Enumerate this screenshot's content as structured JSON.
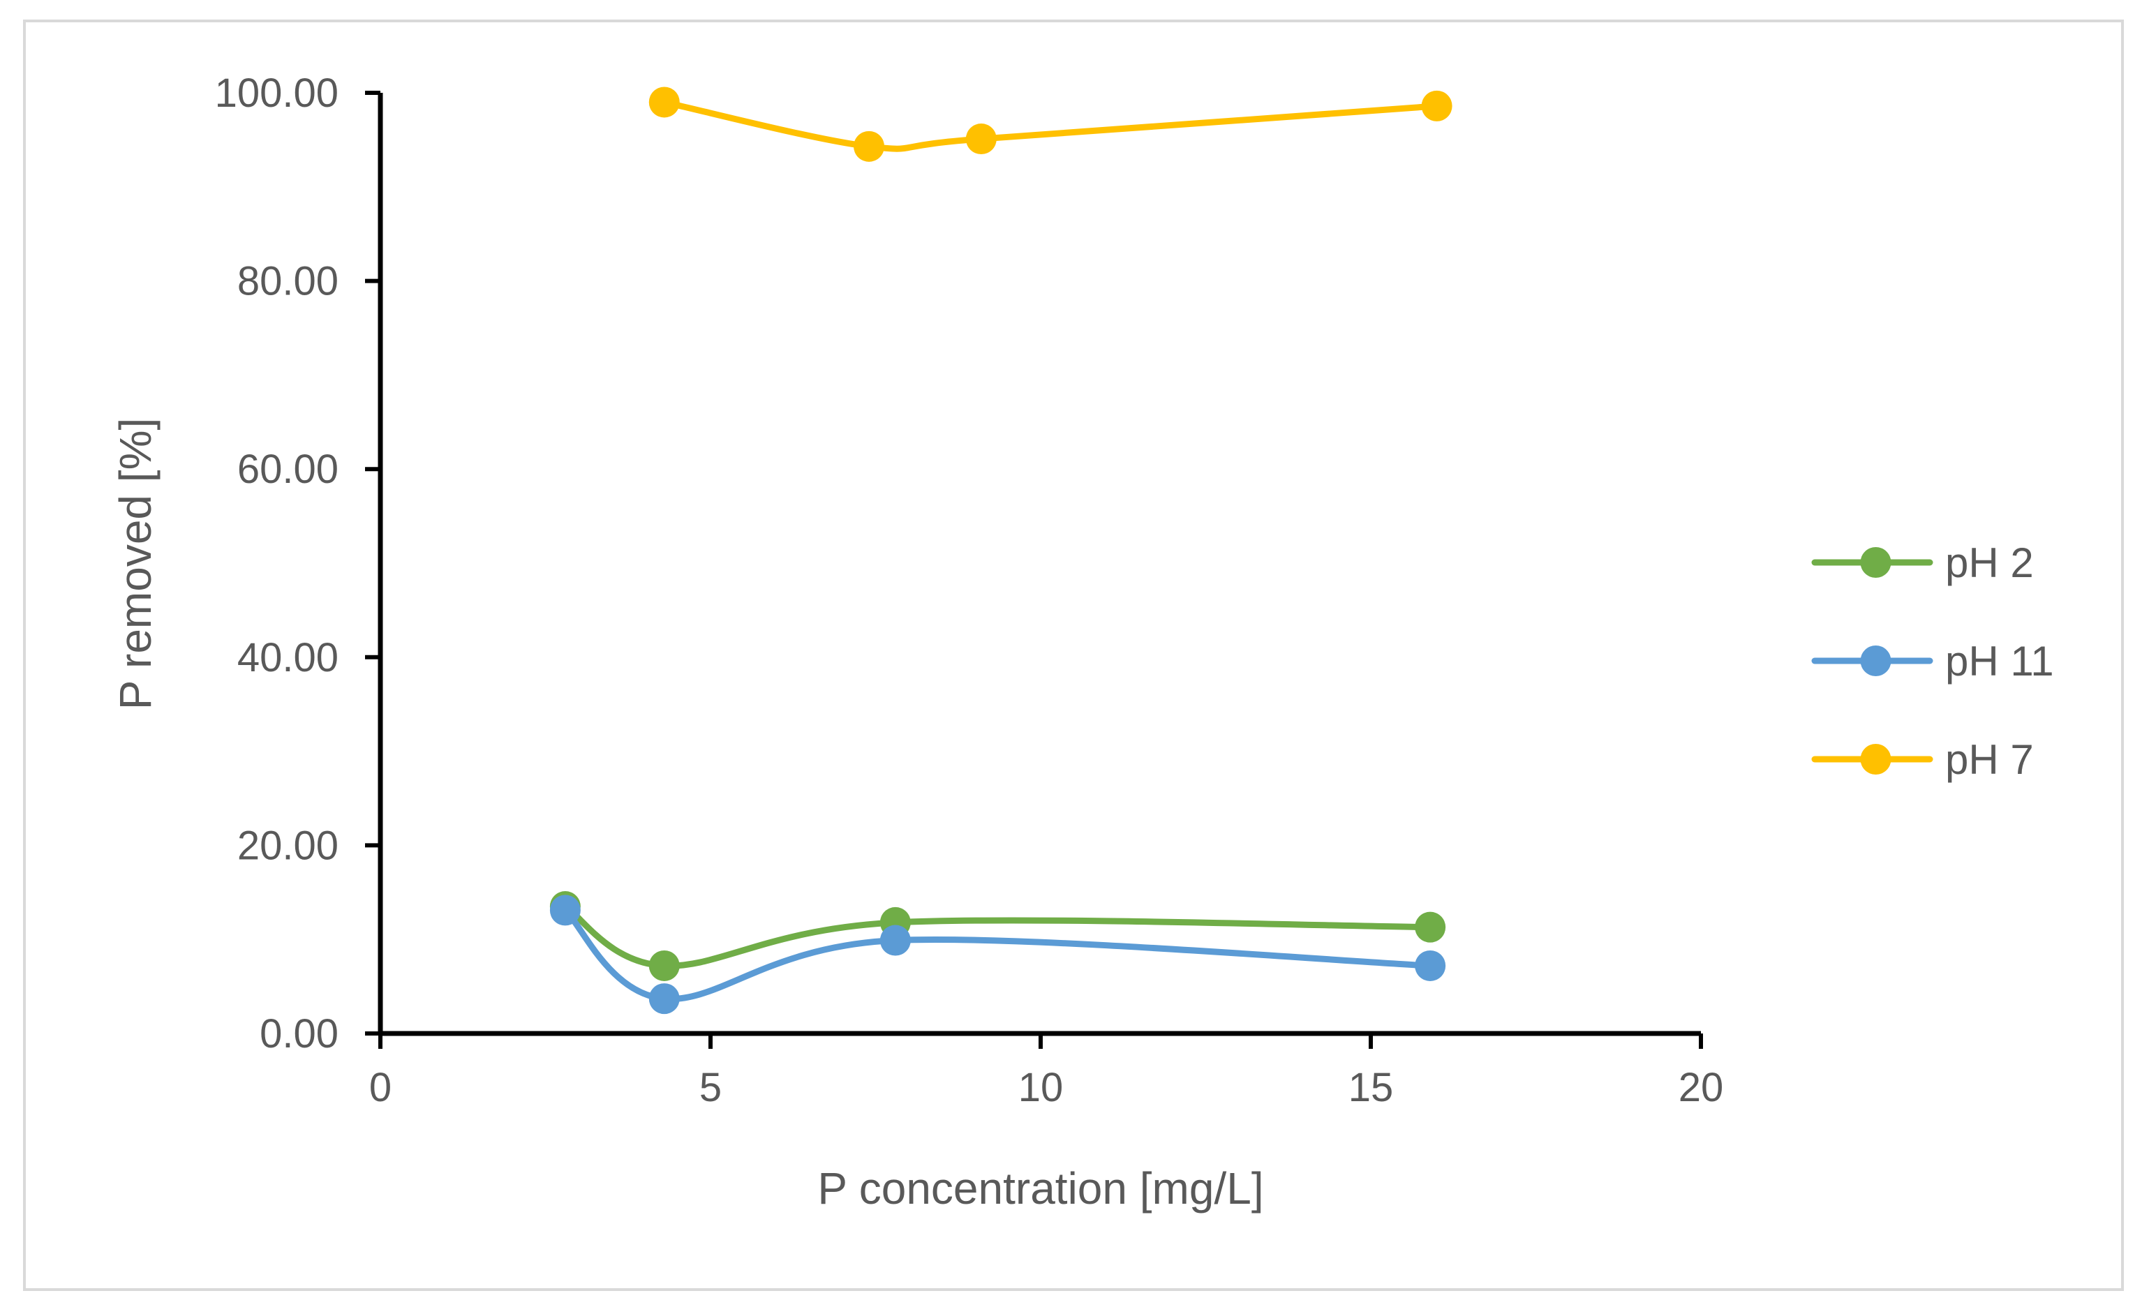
{
  "chart_data": {
    "type": "scatter",
    "title": "",
    "xlabel": "P concentration [mg/L]",
    "ylabel": "P removed [%]",
    "xlim": [
      0,
      20
    ],
    "ylim": [
      0,
      100
    ],
    "x_ticks": [
      0,
      5,
      10,
      15,
      20
    ],
    "y_ticks": [
      0,
      20,
      40,
      60,
      80,
      100
    ],
    "x_tick_labels": [
      "0",
      "5",
      "10",
      "15",
      "20"
    ],
    "y_tick_labels": [
      "0.00",
      "20.00",
      "40.00",
      "60.00",
      "80.00",
      "100.00"
    ],
    "grid": false,
    "legend_position": "right",
    "smooth": true,
    "series": [
      {
        "name": "pH 2",
        "color": "#70ad47",
        "x": [
          2.8,
          4.3,
          7.8,
          15.9
        ],
        "y": [
          13.5,
          7.2,
          11.8,
          11.3
        ]
      },
      {
        "name": "pH 11",
        "color": "#5b9bd5",
        "x": [
          2.8,
          4.3,
          7.8,
          15.9
        ],
        "y": [
          13.1,
          3.7,
          9.9,
          7.2
        ]
      },
      {
        "name": "pH 7",
        "color": "#ffc000",
        "x": [
          4.3,
          7.4,
          9.1,
          16.0
        ],
        "y": [
          99.0,
          94.3,
          95.1,
          98.6
        ]
      }
    ]
  }
}
